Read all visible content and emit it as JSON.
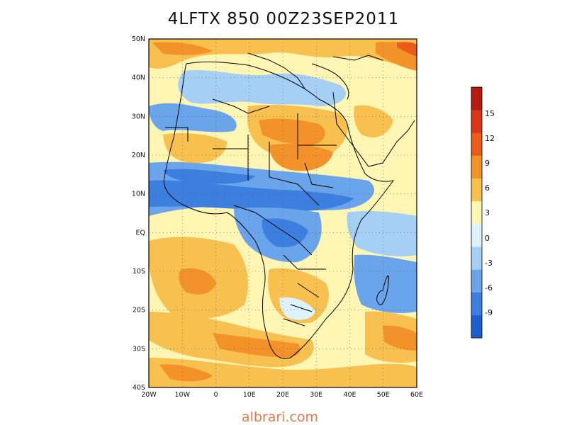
{
  "title": "4LFTX 850 00Z23SEP2011",
  "watermark": "albrari.com",
  "map": {
    "lat_labels": [
      "50N",
      "40N",
      "30N",
      "20N",
      "10N",
      "EQ",
      "10S",
      "20S",
      "30S",
      "40S"
    ],
    "lon_labels": [
      "20W",
      "10W",
      "0",
      "10E",
      "20E",
      "30E",
      "40E",
      "50E",
      "60E"
    ],
    "lon_range": [
      -20,
      60
    ],
    "lat_range": [
      -40,
      50
    ],
    "grid": "dotted"
  },
  "colorbar": {
    "labels": [
      "15",
      "12",
      "9",
      "6",
      "3",
      "0",
      "-3",
      "-6",
      "-9"
    ],
    "colors": [
      "#1f5fcf",
      "#3c7fdf",
      "#6aa5ec",
      "#a6cff5",
      "#dcf3fb",
      "#fff6b4",
      "#f8c04f",
      "#f39228",
      "#e95b16",
      "#d8351a",
      "#b61b10"
    ]
  },
  "colors": {
    "outline": "#000000",
    "watermark": "#e8794a"
  }
}
